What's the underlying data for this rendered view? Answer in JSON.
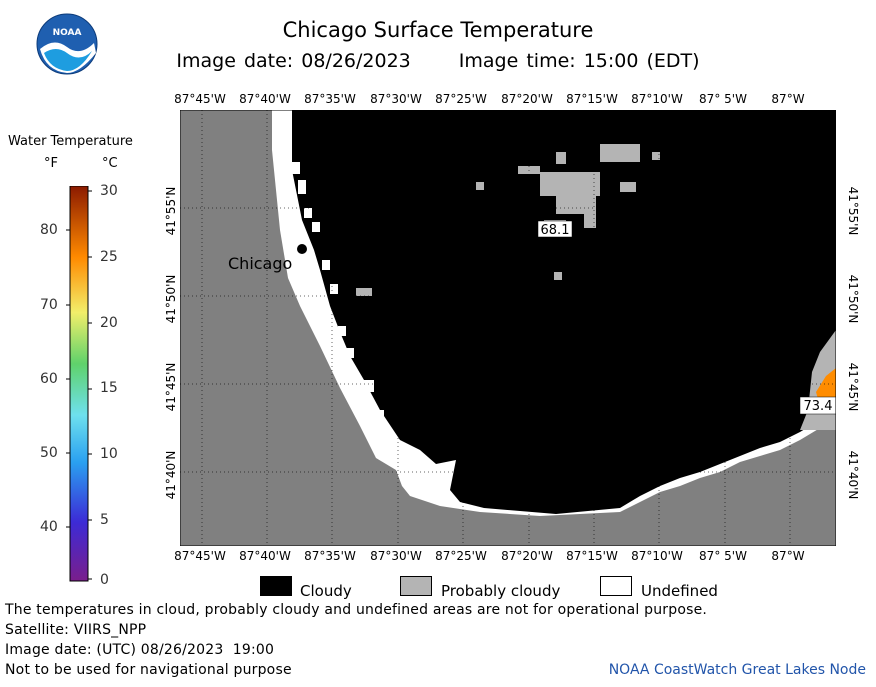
{
  "header": {
    "title": "Chicago Surface Temperature",
    "image_date": "Image date: 08/26/2023",
    "image_time": "Image time: 15:00 (EDT)"
  },
  "logo": {
    "text": "NOAA"
  },
  "map": {
    "lon_labels": [
      "87°45'W",
      "87°40'W",
      "87°35'W",
      "87°30'W",
      "87°25'W",
      "87°20'W",
      "87°15'W",
      "87°10'W",
      "87° 5'W",
      "87°W"
    ],
    "lat_labels": [
      "41°55'N",
      "41°50'N",
      "41°45'N",
      "41°40'N"
    ],
    "city_label": "Chicago",
    "value_labels": [
      "68.1",
      "73.4"
    ],
    "colors": {
      "land": "#808080",
      "cloudy": "#000000",
      "probably_cloudy": "#b4b4b4",
      "undefined": "#ffffff",
      "warm_water": "#ff8c00"
    }
  },
  "legend": {
    "title": "Water Temperature",
    "unit_f": "°F",
    "unit_c": "°C",
    "f_ticks": [
      "80",
      "70",
      "60",
      "50",
      "40"
    ],
    "c_ticks": [
      "30",
      "25",
      "20",
      "15",
      "10",
      "5",
      "0"
    ]
  },
  "key": {
    "cloudy": "Cloudy",
    "probably_cloudy": "Probably cloudy",
    "undefined": "Undefined"
  },
  "footer": {
    "note": "The temperatures in cloud, probably cloudy and undefined areas are not for operational purpose.",
    "satellite": "Satellite: VIIRS_NPP",
    "utc_date": "Image date: (UTC) 08/26/2023  19:00",
    "navigation": "Not to be used for navigational purpose",
    "credit": "NOAA CoastWatch Great Lakes Node"
  }
}
